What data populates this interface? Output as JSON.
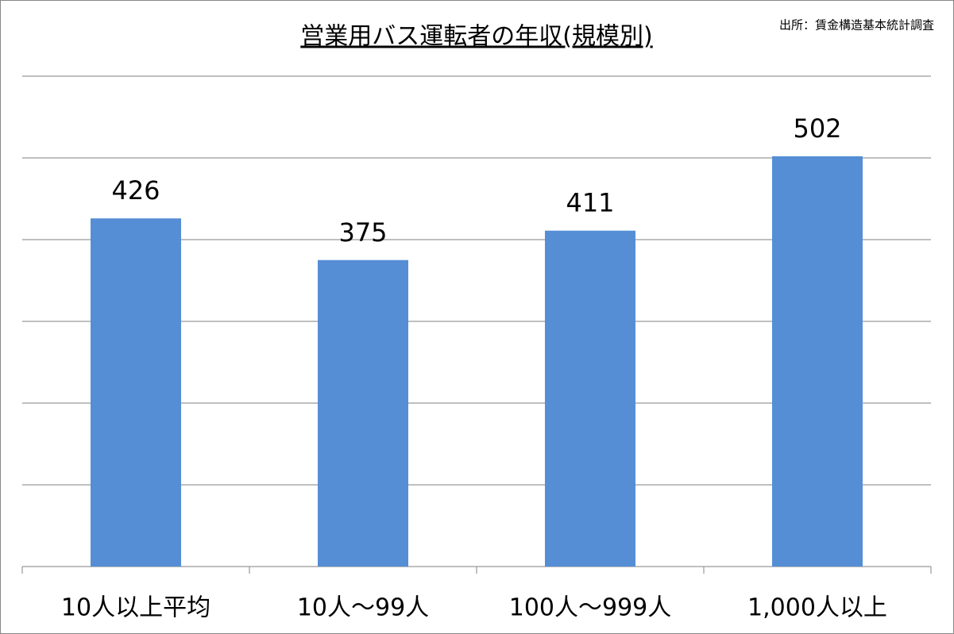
{
  "chart_data": {
    "type": "bar",
    "title": "営業用バス運転者の年収(規模別)",
    "source": "出所：賃金構造基本統計調査",
    "categories": [
      "10人以上平均",
      "10人～99人",
      "100人～999人",
      "1,000人以上"
    ],
    "values": [
      426,
      375,
      411,
      502
    ],
    "color": "#558ed5",
    "ylim": [
      0,
      600
    ],
    "yticks": [
      0,
      100,
      200,
      300,
      400,
      500,
      600
    ],
    "grid": true
  }
}
